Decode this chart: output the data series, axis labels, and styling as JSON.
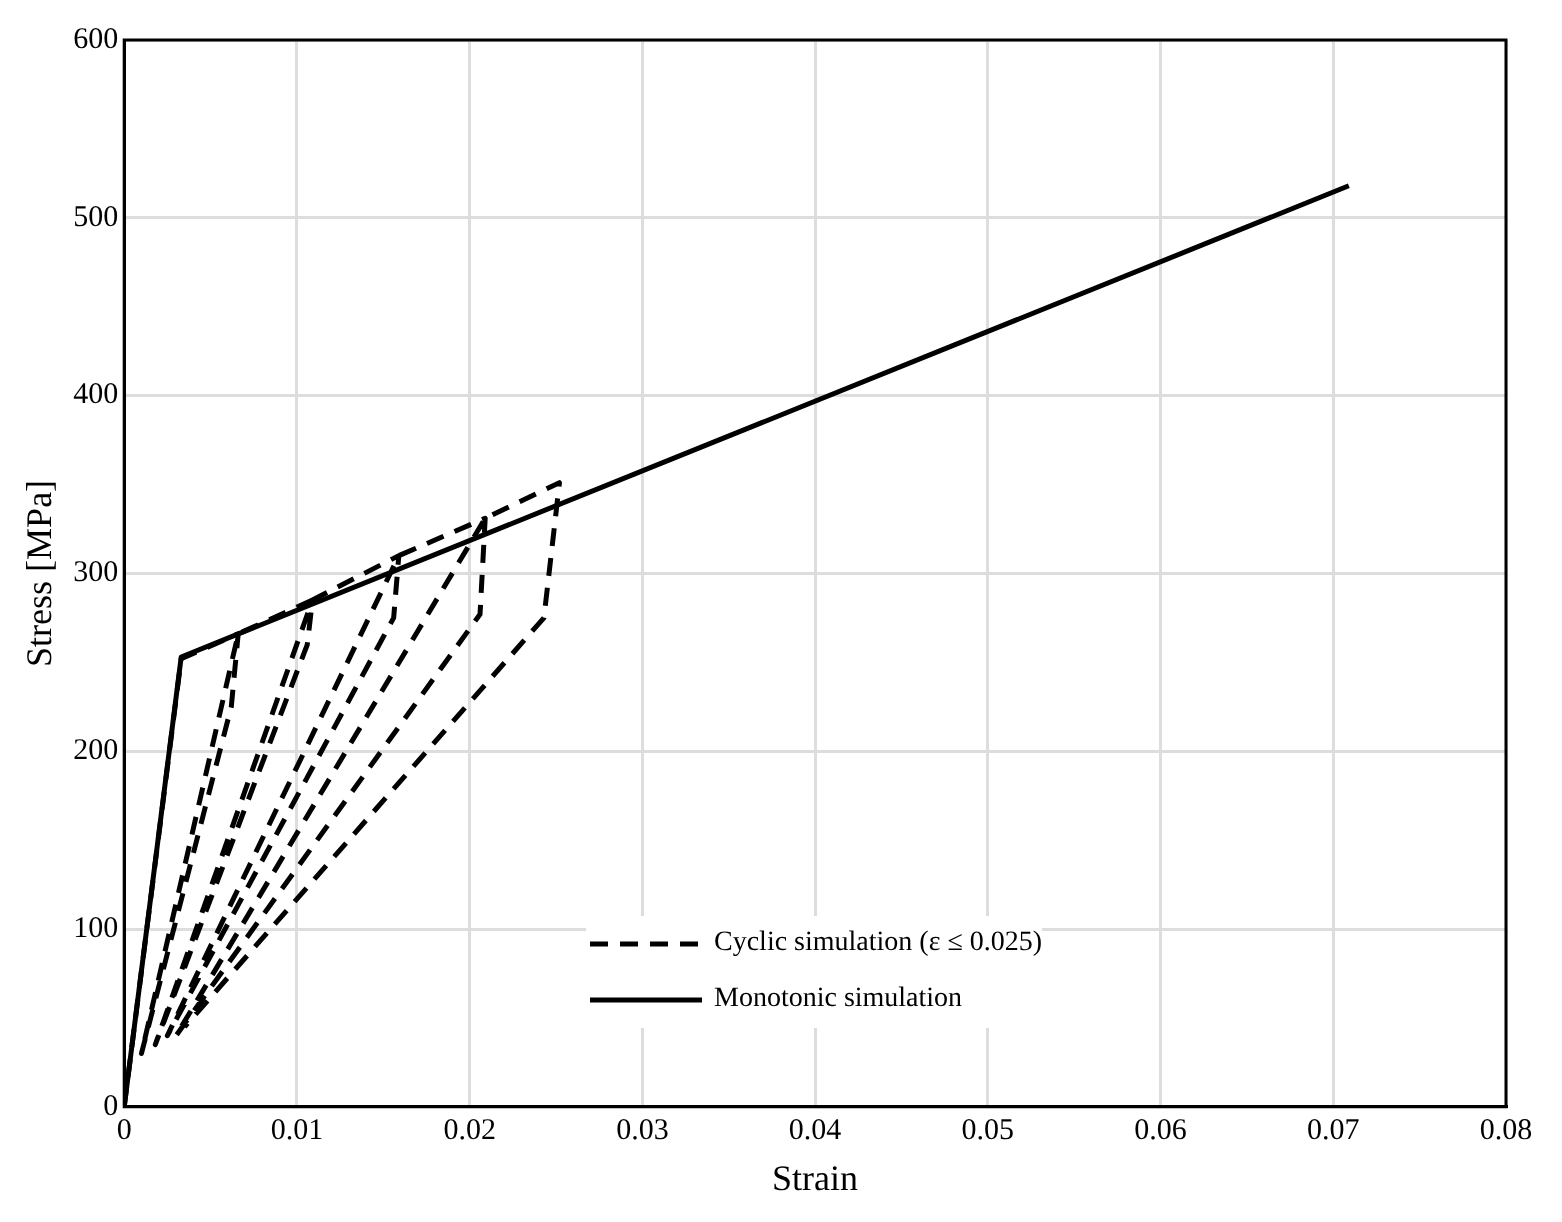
{
  "chart_data": {
    "type": "line",
    "xlabel": "Strain",
    "ylabel": "Stress [MPa]",
    "xlim": [
      0,
      0.08
    ],
    "ylim": [
      0,
      600
    ],
    "xticks": [
      0,
      0.01,
      0.02,
      0.03,
      0.04,
      0.05,
      0.06,
      0.07,
      0.08
    ],
    "yticks": [
      0,
      100,
      200,
      300,
      400,
      500,
      600
    ],
    "grid": true,
    "legend": "bottom",
    "marker": "none",
    "series": [
      {
        "name": "Cyclic simulation (ε ≤ 0.025)",
        "color": "#000000",
        "line_style": "dashed",
        "x": [
          0,
          0.0033,
          0.0066,
          0.0062,
          0.001,
          0.0066,
          0.0109,
          0.0106,
          0.0018,
          0.0109,
          0.0159,
          0.0156,
          0.0025,
          0.0159,
          0.0209,
          0.0206,
          0.003,
          0.0209,
          0.0252,
          0.0243,
          0.0035
        ],
        "values": [
          0,
          252,
          266,
          225,
          30,
          266,
          285,
          260,
          35,
          285,
          310,
          275,
          40,
          310,
          331,
          277,
          40,
          331,
          351,
          275,
          45
        ]
      },
      {
        "name": "Monotonic simulation",
        "color": "#000000",
        "line_style": "solid",
        "x": [
          0,
          0.0033,
          0.0709
        ],
        "values": [
          0,
          253,
          518
        ]
      }
    ]
  }
}
